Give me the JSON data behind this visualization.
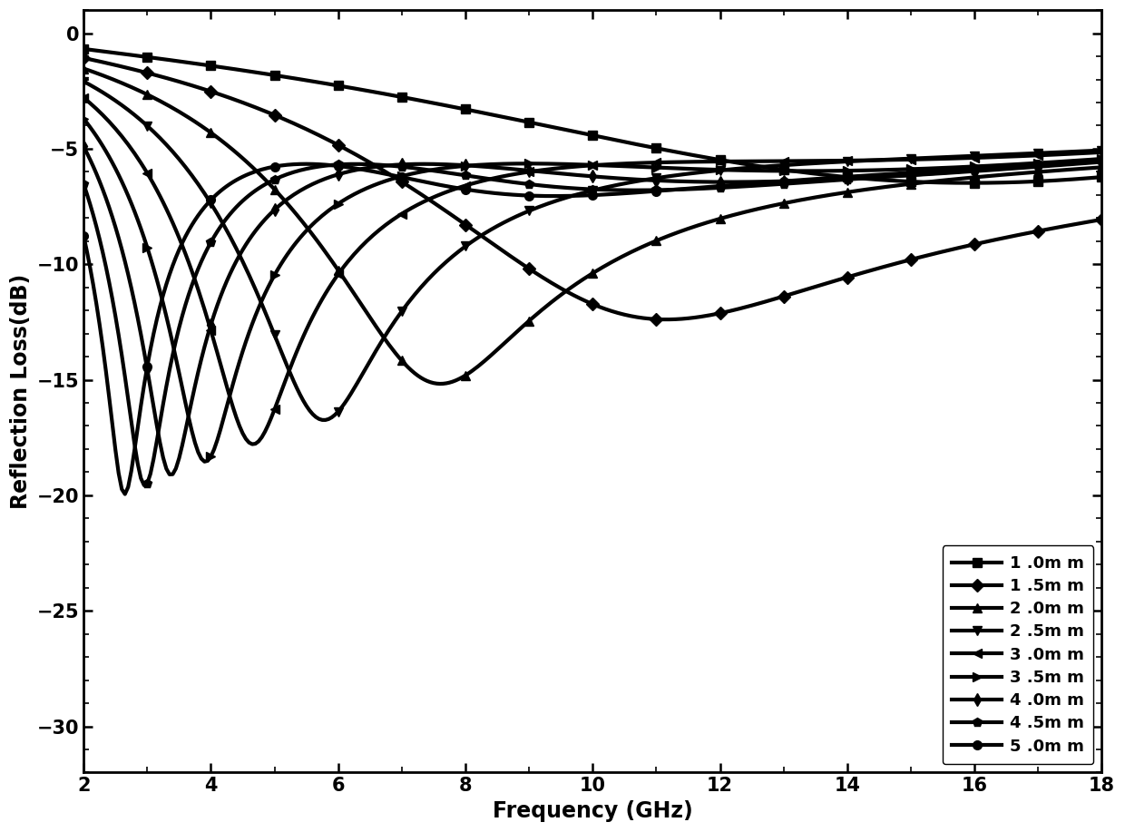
{
  "title": "",
  "xlabel": "Frequency (GHz)",
  "ylabel": "Reflection Loss(dB)",
  "xlim": [
    2,
    18
  ],
  "ylim": [
    -32,
    1
  ],
  "yticks": [
    0,
    -5,
    -10,
    -15,
    -20,
    -25,
    -30
  ],
  "xticks": [
    2,
    4,
    6,
    8,
    10,
    12,
    14,
    16,
    18
  ],
  "background_color": "#ffffff",
  "line_color": "#000000",
  "legend_labels": [
    "1 .0m m",
    "1 .5m m",
    "2 .0m m",
    "2 .5m m",
    "3 .0m m",
    "3 .5m m",
    "4 .0m m",
    "4 .5m m",
    "5 .0m m"
  ],
  "markers": [
    "s",
    "D",
    "^",
    "v",
    "<",
    ">",
    "d",
    "p",
    "o"
  ],
  "thicknesses_mm": [
    1.0,
    1.5,
    2.0,
    2.5,
    3.0,
    3.5,
    4.0,
    4.5,
    5.0
  ],
  "freq_start": 2,
  "freq_end": 18,
  "freq_points": 321
}
